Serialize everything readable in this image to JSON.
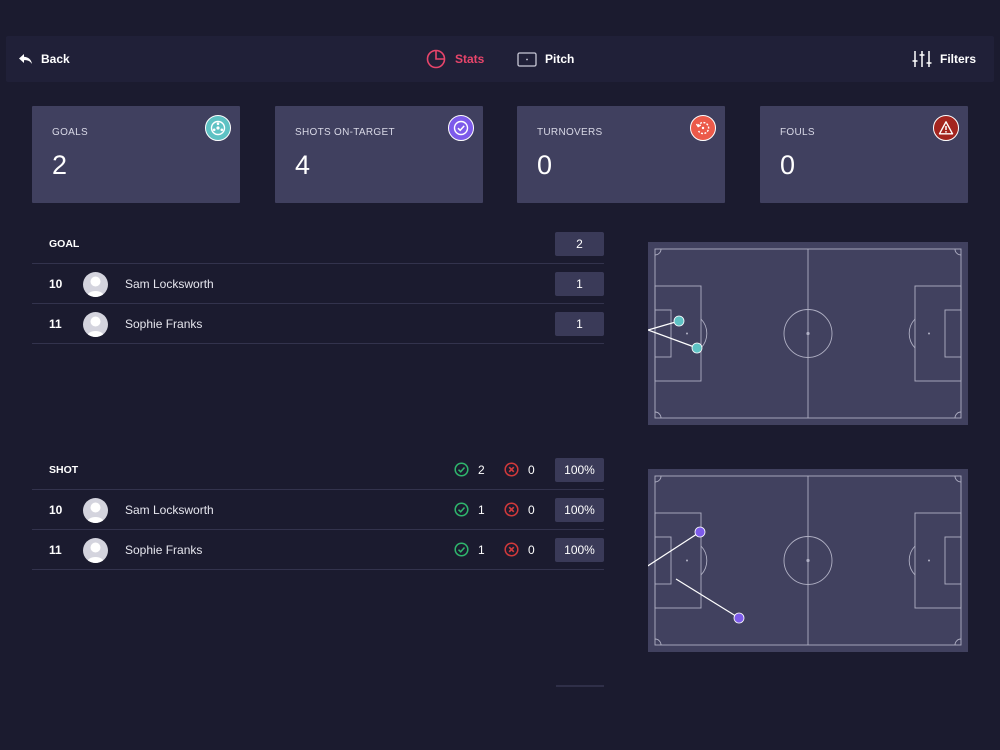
{
  "nav": {
    "back_label": "Back",
    "tabs": [
      {
        "label": "Stats",
        "icon": "pie-chart-icon",
        "active": true
      },
      {
        "label": "Pitch",
        "icon": "pitch-icon",
        "active": false
      }
    ],
    "filters_label": "Filters"
  },
  "colors": {
    "background": "#1b1b2f",
    "accent": "#e8456b",
    "card": "#40405f",
    "goal_teal": "#5ec2c4",
    "shot_purple": "#7d5bea",
    "turnover_red": "#ec5a4a",
    "foul_darkred": "#a3251f",
    "success": "#2fb66d",
    "fail": "#d2393b"
  },
  "cards": [
    {
      "label": "GOALS",
      "value": "2",
      "icon": "soccer-ball-icon",
      "color": "#5ec2c4"
    },
    {
      "label": "SHOTS ON-TARGET",
      "value": "4",
      "icon": "check-circle-icon",
      "color": "#7d5bea"
    },
    {
      "label": "TURNOVERS",
      "value": "0",
      "icon": "turnover-icon",
      "color": "#ec5a4a"
    },
    {
      "label": "FOULS",
      "value": "0",
      "icon": "warning-icon",
      "color": "#a3251f"
    }
  ],
  "goal_section": {
    "title": "GOAL",
    "total": "2",
    "players": [
      {
        "number": "10",
        "name": "Sam Locksworth",
        "count": "1"
      },
      {
        "number": "11",
        "name": "Sophie Franks",
        "count": "1"
      }
    ]
  },
  "shot_section": {
    "title": "SHOT",
    "ok": "2",
    "bad": "0",
    "pct": "100%",
    "players": [
      {
        "number": "10",
        "name": "Sam Locksworth",
        "ok": "1",
        "bad": "0",
        "pct": "100%"
      },
      {
        "number": "11",
        "name": "Sophie Franks",
        "ok": "1",
        "bad": "0",
        "pct": "100%"
      }
    ]
  }
}
